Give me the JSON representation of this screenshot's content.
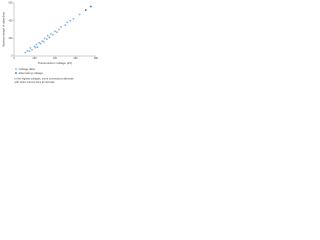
{
  "chart_data": {
    "type": "scatter",
    "ylabel": "Maximum length of cable (km)",
    "xlabel": "Transmission voltage (kV)",
    "xlim": [
      0,
      800
    ],
    "xticks": [
      0,
      200,
      400,
      600,
      800
    ],
    "ylim": [
      0,
      600
    ],
    "yticks": [
      0,
      200,
      400,
      600
    ],
    "grid": false,
    "legend": "bottom-left",
    "series": [
      {
        "name": "voltage data",
        "color": "#7fb2e0",
        "x": [
          110,
          130,
          150,
          160,
          175,
          200,
          210,
          220,
          230,
          245,
          260,
          275,
          290,
          300,
          320,
          330,
          345,
          360,
          380,
          400,
          420,
          440,
          460,
          500,
          520,
          550,
          580,
          640
        ],
        "values": [
          40,
          60,
          55,
          90,
          70,
          110,
          95,
          130,
          100,
          150,
          140,
          170,
          160,
          200,
          190,
          230,
          210,
          250,
          240,
          280,
          270,
          300,
          330,
          350,
          380,
          400,
          420,
          470
        ]
      },
      {
        "name": "alternating voltage",
        "color": "#2e6da4",
        "x": [
          700,
          750
        ],
        "values": [
          520,
          560
        ]
      }
    ],
    "annotations": [
      "In the highest voltages, some connections alternate",
      "with direct current lines at intervals"
    ]
  }
}
